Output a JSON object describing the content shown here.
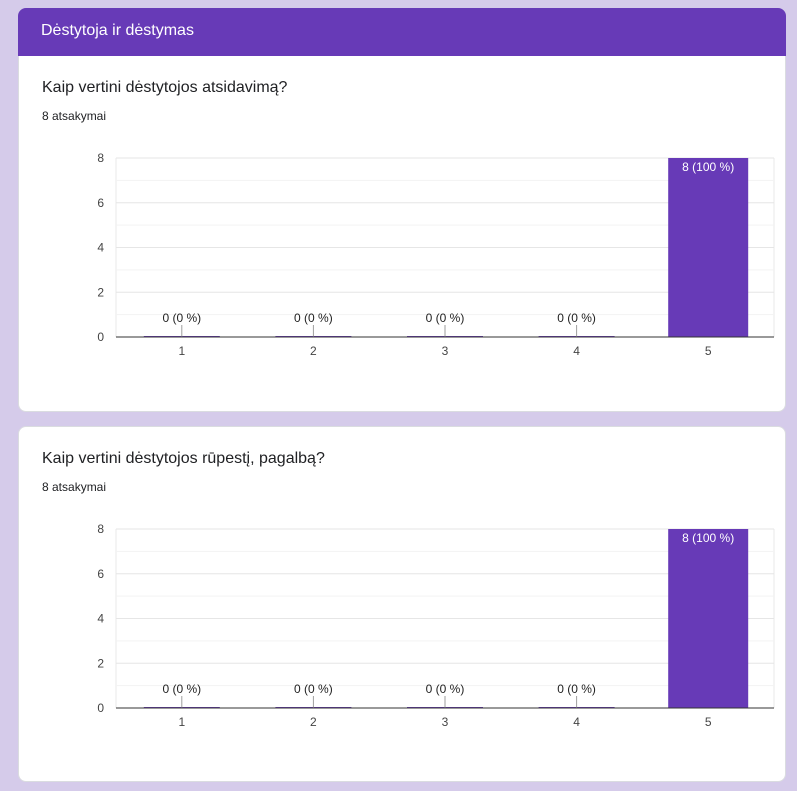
{
  "section": {
    "title": "Dėstytoja ir dėstymas"
  },
  "questions": [
    {
      "title": "Kaip vertini dėstytojos atsidavimą?",
      "count": "8 atsakymai",
      "chart_data": {
        "type": "bar",
        "categories": [
          "1",
          "2",
          "3",
          "4",
          "5"
        ],
        "values": [
          0,
          0,
          0,
          0,
          8
        ],
        "data_labels": [
          "0 (0 %)",
          "0 (0 %)",
          "0 (0 %)",
          "0 (0 %)",
          "8 (100 %)"
        ],
        "y_ticks": [
          0,
          2,
          4,
          6,
          8
        ],
        "ylim": [
          0,
          8
        ],
        "grid": true,
        "bar_color": "#673ab7"
      }
    },
    {
      "title": "Kaip vertini dėstytojos rūpestį, pagalbą?",
      "count": "8 atsakymai",
      "chart_data": {
        "type": "bar",
        "categories": [
          "1",
          "2",
          "3",
          "4",
          "5"
        ],
        "values": [
          0,
          0,
          0,
          0,
          8
        ],
        "data_labels": [
          "0 (0 %)",
          "0 (0 %)",
          "0 (0 %)",
          "0 (0 %)",
          "8 (100 %)"
        ],
        "y_ticks": [
          0,
          2,
          4,
          6,
          8
        ],
        "ylim": [
          0,
          8
        ],
        "grid": true,
        "bar_color": "#673ab7"
      }
    }
  ]
}
